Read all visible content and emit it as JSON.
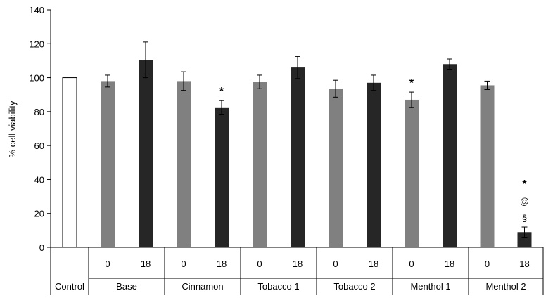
{
  "chart_data": {
    "type": "bar",
    "ylabel": "% cell viability",
    "ylim": [
      0,
      140
    ],
    "yticks": [
      0,
      20,
      40,
      60,
      80,
      100,
      120,
      140
    ],
    "grid": false,
    "groups": [
      {
        "name": "Control",
        "bars": [
          {
            "time": "",
            "value": 100,
            "error": 0,
            "style": "control",
            "markers": []
          }
        ]
      },
      {
        "name": "Base",
        "bars": [
          {
            "time": "0",
            "value": 98,
            "error": 3.5,
            "style": "t0",
            "markers": []
          },
          {
            "time": "18",
            "value": 110.5,
            "error": 10.5,
            "style": "t18",
            "markers": []
          }
        ]
      },
      {
        "name": "Cinnamon",
        "bars": [
          {
            "time": "0",
            "value": 98,
            "error": 5.5,
            "style": "t0",
            "markers": []
          },
          {
            "time": "18",
            "value": 82.5,
            "error": 4,
            "style": "t18",
            "markers": [
              "*"
            ]
          }
        ]
      },
      {
        "name": "Tobacco 1",
        "bars": [
          {
            "time": "0",
            "value": 97.5,
            "error": 4,
            "style": "t0",
            "markers": []
          },
          {
            "time": "18",
            "value": 106,
            "error": 6.5,
            "style": "t18",
            "markers": []
          }
        ]
      },
      {
        "name": "Tobacco 2",
        "bars": [
          {
            "time": "0",
            "value": 93.5,
            "error": 5,
            "style": "t0",
            "markers": []
          },
          {
            "time": "18",
            "value": 97,
            "error": 4.5,
            "style": "t18",
            "markers": []
          }
        ]
      },
      {
        "name": "Menthol 1",
        "bars": [
          {
            "time": "0",
            "value": 87,
            "error": 4.5,
            "style": "t0",
            "markers": [
              "*"
            ]
          },
          {
            "time": "18",
            "value": 108,
            "error": 3,
            "style": "t18",
            "markers": []
          }
        ]
      },
      {
        "name": "Menthol 2",
        "bars": [
          {
            "time": "0",
            "value": 95.5,
            "error": 2.5,
            "style": "t0",
            "markers": []
          },
          {
            "time": "18",
            "value": 9,
            "error": 3,
            "style": "t18",
            "markers": [
              "*",
              "@",
              "§"
            ]
          }
        ]
      }
    ],
    "colors": {
      "control": "#ffffff",
      "t0": "#808080",
      "t18": "#262626",
      "axis": "#000000"
    }
  }
}
